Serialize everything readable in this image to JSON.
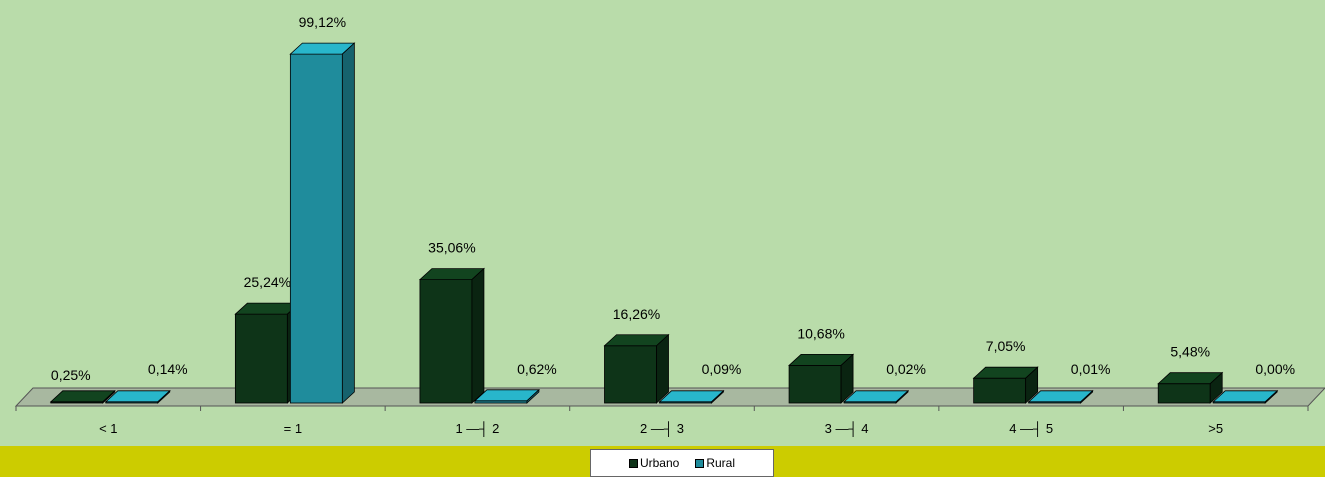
{
  "chart_data": {
    "type": "bar",
    "style": "3d-clustered",
    "categories": [
      "< 1",
      "= 1",
      "1 —┤ 2",
      "2 —┤ 3",
      "3 —┤ 4",
      "4 —┤ 5",
      ">5"
    ],
    "series": [
      {
        "name": "Urbano",
        "color": "#0e3418",
        "values": [
          0.25,
          25.24,
          35.06,
          16.26,
          10.68,
          7.05,
          5.48
        ],
        "labels": [
          "0,25%",
          "25,24%",
          "35,06%",
          "16,26%",
          "10,68%",
          "7,05%",
          "5,48%"
        ]
      },
      {
        "name": "Rural",
        "color": "#1f8c9c",
        "values": [
          0.14,
          99.12,
          0.62,
          0.09,
          0.02,
          0.01,
          0.0
        ],
        "labels": [
          "0,14%",
          "99,12%",
          "0,62%",
          "0,09%",
          "0,02%",
          "0,01%",
          "0,00%"
        ]
      }
    ],
    "ylim": [
      0,
      100
    ],
    "grid": false,
    "legend_position": "bottom",
    "background": "#b9dcaa",
    "legend_band_color": "#cccc00",
    "floor_color": "#a8b8a0"
  }
}
